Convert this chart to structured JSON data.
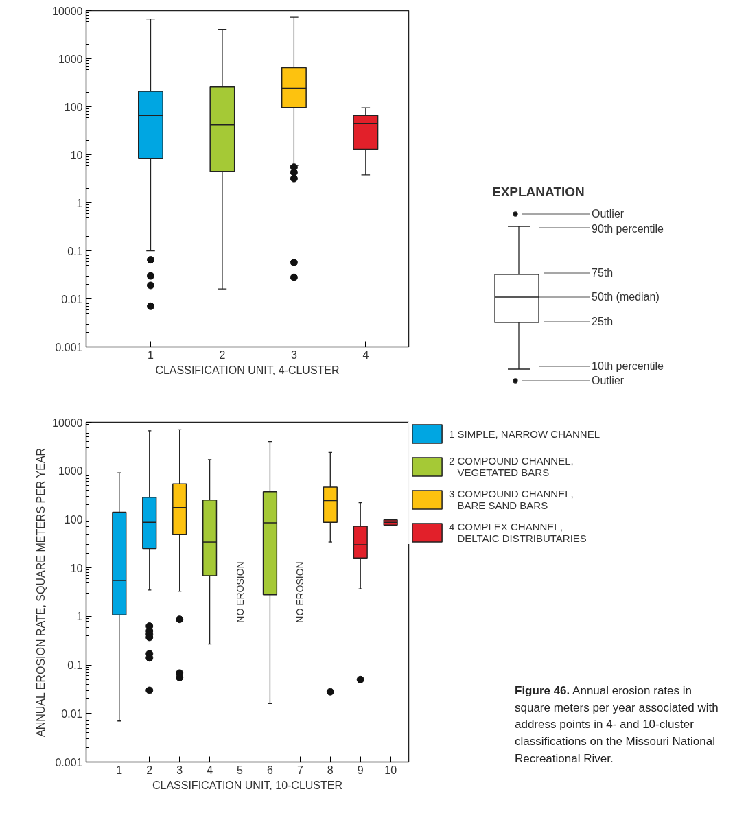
{
  "chart_data": [
    {
      "type": "box",
      "xlabel": "CLASSIFICATION UNIT, 4-CLUSTER",
      "categories": [
        "1",
        "2",
        "3",
        "4"
      ],
      "log": "y",
      "ylim": [
        0.001,
        10000
      ],
      "yticks": [
        0.001,
        0.01,
        0.1,
        1,
        10,
        100,
        1000,
        10000
      ],
      "grid": false,
      "legend": false,
      "series": [
        {
          "color": "#00a6e2",
          "boxes": [
            {
              "low": 0.1,
              "q1": 8.3,
              "median": 66,
              "q3": 209,
              "high": 6700,
              "outliers": [
                0.065,
                0.03,
                0.019,
                0.007
              ]
            },
            null,
            null,
            null
          ]
        },
        {
          "color": "#a5c936",
          "boxes": [
            null,
            {
              "low": 0.016,
              "q1": 4.5,
              "median": 42,
              "q3": 257,
              "high": 4100
            },
            null,
            null
          ]
        },
        {
          "color": "#fdc20f",
          "boxes": [
            null,
            null,
            {
              "low": 6,
              "q1": 96,
              "median": 244,
              "q3": 650,
              "high": 7300,
              "outliers": [
                5.5,
                4.3,
                3.2,
                0.057,
                0.028
              ]
            },
            null
          ]
        },
        {
          "color": "#e2202a",
          "boxes": [
            null,
            null,
            null,
            {
              "low": 3.8,
              "q1": 13,
              "median": 45,
              "q3": 66,
              "high": 95
            }
          ]
        }
      ],
      "annotations": [
        "EXPLANATION",
        "Outlier",
        "90th percentile",
        "75th",
        "50th (median)",
        "25th",
        "10th percentile",
        "Outlier"
      ]
    },
    {
      "type": "box",
      "xlabel": "CLASSIFICATION UNIT, 10-CLUSTER",
      "ylabel": "ANNUAL EROSION RATE, SQUARE METERS PER YEAR",
      "categories": [
        "1",
        "2",
        "3",
        "4",
        "5",
        "6",
        "7",
        "8",
        "9",
        "10"
      ],
      "log": "y",
      "ylim": [
        0.001,
        10000
      ],
      "yticks": [
        0.001,
        0.01,
        0.1,
        1,
        10,
        100,
        1000,
        10000
      ],
      "grid": false,
      "legend": "right",
      "series": [
        {
          "name": "1 SIMPLE, NARROW CHANNEL",
          "color": "#00a6e2",
          "boxes": [
            {
              "low": 0.007,
              "q1": 1.07,
              "median": 5.5,
              "q3": 141,
              "high": 910
            },
            {
              "low": 3.5,
              "q1": 25,
              "median": 87,
              "q3": 284,
              "high": 6700,
              "outliers": [
                0.63,
                0.5,
                0.43,
                0.37,
                0.17,
                0.14,
                0.03
              ]
            },
            null,
            null,
            null,
            null,
            null,
            null,
            null,
            null
          ]
        },
        {
          "name": "2 COMPOUND CHANNEL, VEGETATED BARS",
          "color": "#a5c936",
          "boxes": [
            null,
            null,
            null,
            {
              "low": 0.27,
              "q1": 6.9,
              "median": 34,
              "q3": 250,
              "high": 1700
            },
            null,
            {
              "low": 0.016,
              "q1": 2.8,
              "median": 85,
              "q3": 370,
              "high": 4000
            },
            null,
            null,
            null,
            null
          ]
        },
        {
          "name": "3 COMPOUND CHANNEL, BARE SAND BARS",
          "color": "#fdc20f",
          "boxes": [
            null,
            null,
            {
              "low": 3.3,
              "q1": 49,
              "median": 175,
              "q3": 540,
              "high": 7000,
              "outliers": [
                0.87,
                0.068,
                0.055
              ]
            },
            null,
            null,
            null,
            null,
            {
              "low": 34,
              "q1": 87,
              "median": 244,
              "q3": 460,
              "high": 2400,
              "outliers": [
                0.028
              ]
            },
            null,
            null
          ]
        },
        {
          "name": "4 COMPLEX CHANNEL, DELTAIC DISTRIBUTARIES",
          "color": "#e2202a",
          "boxes": [
            null,
            null,
            null,
            null,
            null,
            null,
            null,
            null,
            {
              "low": 3.7,
              "q1": 16,
              "median": 30,
              "q3": 72,
              "high": 220,
              "outliers": [
                0.05
              ]
            },
            {
              "low": 76,
              "q1": 76,
              "median": 87,
              "q3": 97,
              "high": 97
            }
          ]
        }
      ],
      "annotations": [
        "NO EROSION",
        "NO EROSION",
        "Figure 46. Annual erosion rates in square meters per year associated with address points in 4- and 10-cluster classifications on the Missouri National Recreational River."
      ]
    }
  ]
}
